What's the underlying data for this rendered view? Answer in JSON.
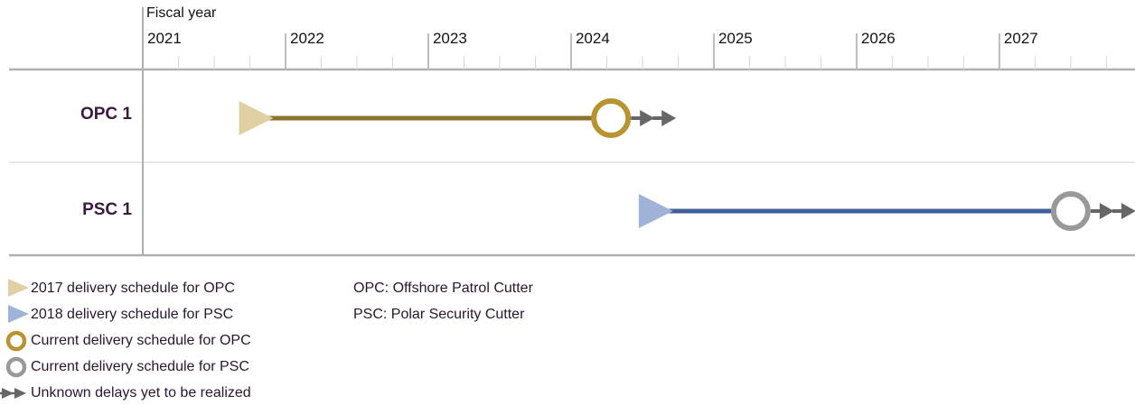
{
  "chart_data": {
    "type": "timeline",
    "axis_title": "Fiscal year",
    "x_ticks": [
      "2021",
      "2022",
      "2023",
      "2024",
      "2025",
      "2026",
      "2027"
    ],
    "xlim": [
      2021,
      2027.95
    ],
    "rows": [
      {
        "label": "OPC 1",
        "schedule_2017": 2021.75,
        "current": 2024.28,
        "color_line": "#8b7430",
        "color_marker_planned": "#e2cfa3",
        "color_marker_current": "#b8932f",
        "unknown_delays": true
      },
      {
        "label": "PSC 1",
        "schedule_2018": 2024.55,
        "current": 2027.5,
        "color_line": "#3f5f98",
        "color_marker_planned": "#9fb3d8",
        "color_marker_current": "#999999",
        "unknown_delays": true
      }
    ]
  },
  "legend": {
    "items": [
      {
        "label": "2017 delivery schedule for OPC",
        "icon": "triangle-icon",
        "color": "#e2cfa3"
      },
      {
        "label": "2018 delivery schedule for PSC",
        "icon": "triangle-icon",
        "color": "#9fb3d8"
      },
      {
        "label": "Current delivery schedule for OPC",
        "icon": "circle-icon",
        "color": "#b8932f"
      },
      {
        "label": "Current delivery schedule for PSC",
        "icon": "circle-icon",
        "color": "#999999"
      },
      {
        "label": "Unknown delays yet to be realized",
        "icon": "double-arrow-icon",
        "color": "#666666"
      }
    ],
    "abbreviations": [
      "OPC: Offshore Patrol Cutter",
      "PSC: Polar Security Cutter"
    ]
  }
}
